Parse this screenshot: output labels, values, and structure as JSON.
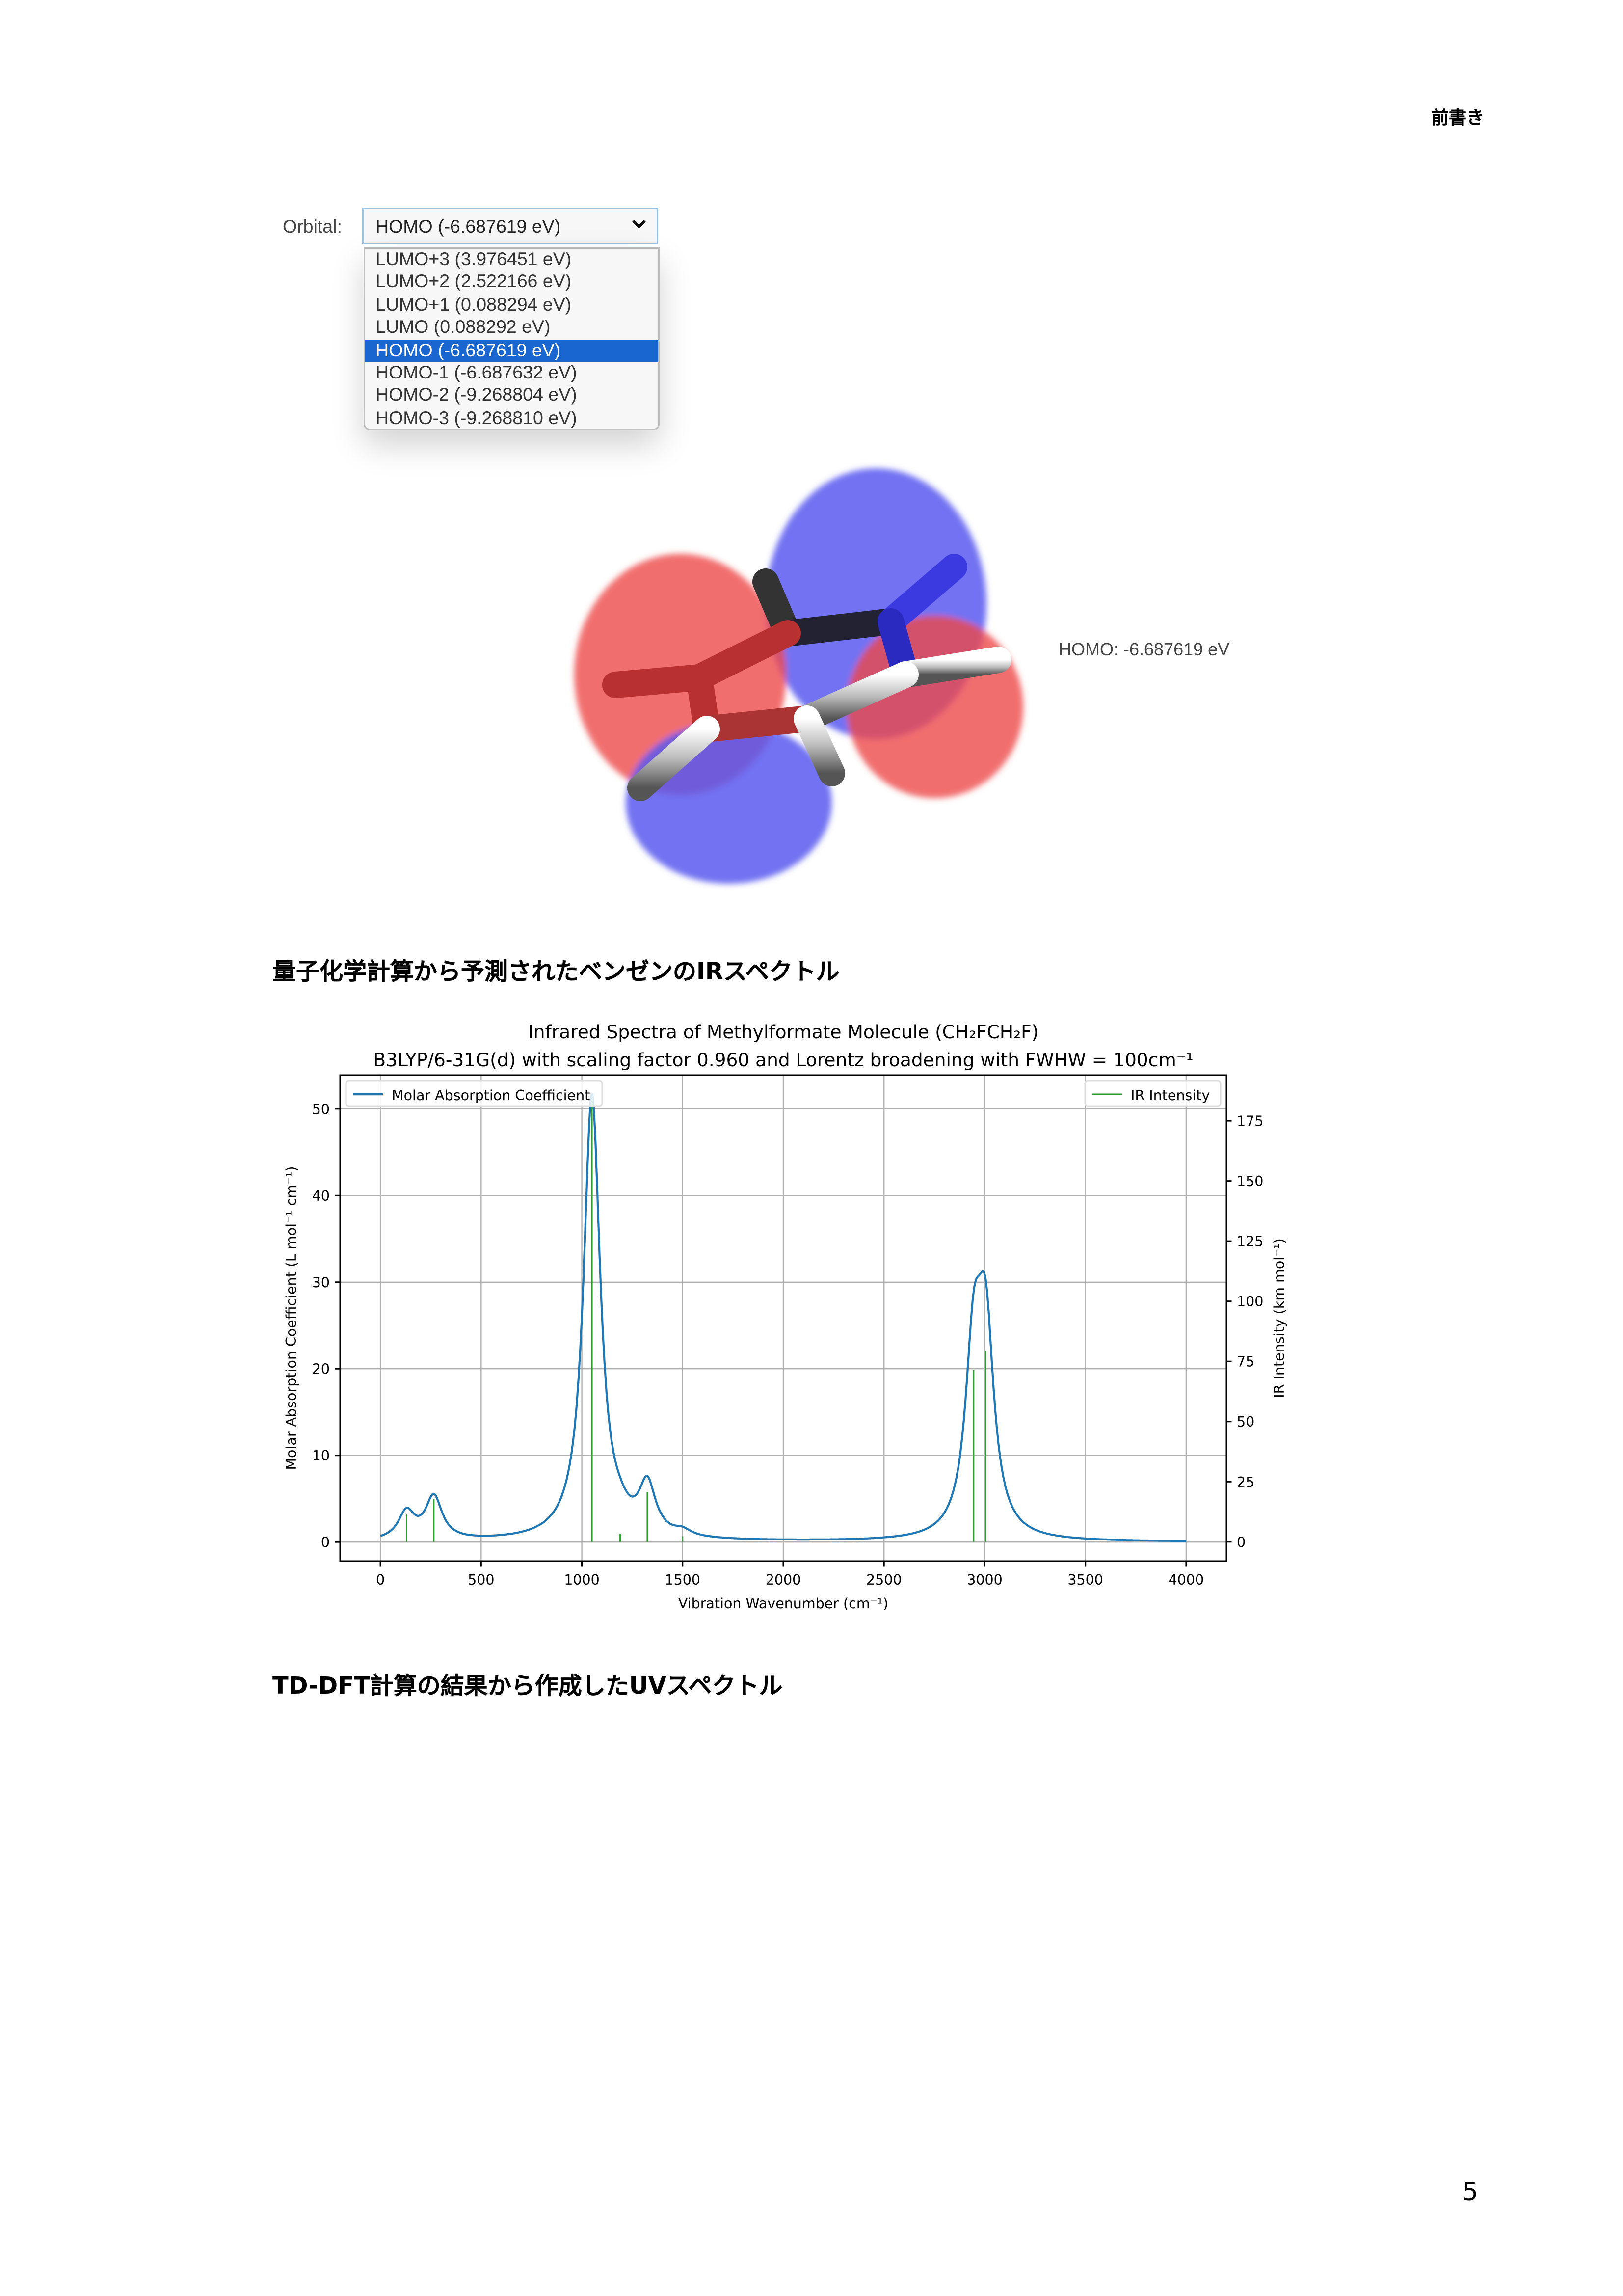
{
  "header": {
    "section": "前書き"
  },
  "orbital_widget": {
    "label": "Orbital:",
    "selected": "HOMO (-6.687619 eV)",
    "options": [
      "LUMO+3 (3.976451 eV)",
      "LUMO+2 (2.522166 eV)",
      "LUMO+1 (0.088294 eV)",
      "LUMO (0.088292 eV)",
      "HOMO (-6.687619 eV)",
      "HOMO-1 (-6.687632 eV)",
      "HOMO-2 (-9.268804 eV)",
      "HOMO-3 (-9.268810 eV)"
    ],
    "selected_index": 4,
    "chevron_icon": "chevron-down-icon",
    "highlight_color": "#1a66d0"
  },
  "viewer": {
    "orbital_label": "HOMO: -6.687619 eV",
    "positive_lobe_color": "#ee4a4a",
    "negative_lobe_color": "#5a5af0"
  },
  "sections": {
    "ir_heading": "量子化学計算から予測されたベンゼンのIRスペクトル",
    "uv_heading": "TD-DFT計算の結果から作成したUVスペクトル"
  },
  "chart_data": {
    "type": "line",
    "title": "Infrared Spectra of Methylformate Molecule (CH₂FCH₂F)",
    "subtitle": "B3LYP/6-31G(d) with scaling factor 0.960 and Lorentz broadening with FWHW = 100cm⁻¹",
    "xlabel": "Vibration Wavenumber (cm⁻¹)",
    "ylabel_left": "Molar Absorption Coefficient (L mol⁻¹ cm⁻¹)",
    "ylabel_right": "IR Intensity (km mol⁻¹)",
    "xlim": [
      -200,
      4200
    ],
    "ylim_left": [
      -2.2,
      53.9
    ],
    "ylim_right": [
      -8,
      194
    ],
    "xticks": [
      "0",
      "500",
      "1000",
      "1500",
      "2000",
      "2500",
      "3000",
      "3500",
      "4000"
    ],
    "yticks_left": [
      "0",
      "10",
      "20",
      "30",
      "40",
      "50"
    ],
    "yticks_right": [
      "0",
      "25",
      "50",
      "75",
      "100",
      "125",
      "150",
      "175"
    ],
    "grid": true,
    "fwhm": 100,
    "series": [
      {
        "name": "Molar Absorption Coefficient",
        "color": "#1f77b4",
        "kind": "line",
        "legend": "top-left",
        "x_range": [
          0,
          4000
        ],
        "peak_values": [
          {
            "x": 1050,
            "y": 51.5
          },
          {
            "x": 2990,
            "y": 31.3
          },
          {
            "x": 1325,
            "y": 7.5
          },
          {
            "x": 265,
            "y": 5.4
          },
          {
            "x": 130,
            "y": 4.0
          }
        ]
      },
      {
        "name": "IR Intensity",
        "color": "#2ca02c",
        "kind": "stick",
        "legend": "top-right",
        "x": [
          130,
          265,
          1050,
          1190,
          1325,
          1500,
          2945,
          3005
        ],
        "y": [
          11.4,
          17.8,
          185,
          3.3,
          20.7,
          2.3,
          71.4,
          79.4
        ]
      }
    ]
  },
  "footer": {
    "page_number": "5"
  }
}
